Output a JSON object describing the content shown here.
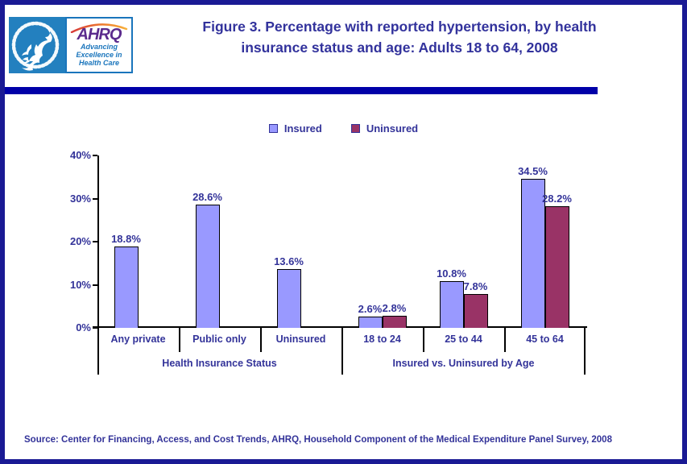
{
  "header": {
    "title_line1": "Figure 3. Percentage with reported hypertension, by health",
    "title_line2": "insurance status and age: Adults 18 to 64, 2008",
    "logo": {
      "wordmark": "AHRQ",
      "tagline_line1": "Advancing",
      "tagline_line2": "Excellence in",
      "tagline_line3": "Health Care"
    }
  },
  "colors": {
    "insured": "#9999ff",
    "uninsured": "#993366",
    "text_blue": "#333399",
    "rule_blue": "#0000a8",
    "border_navy": "#1a1a94"
  },
  "chart_data": {
    "type": "bar",
    "title": "Figure 3. Percentage with reported hypertension, by health insurance status and age: Adults 18 to 64, 2008",
    "ylabel": "",
    "xlabel": "",
    "ylim": [
      0,
      40
    ],
    "yticks": [
      0,
      10,
      20,
      30,
      40
    ],
    "ytick_suffix": "%",
    "grid": false,
    "legend_position": "top-center",
    "categories": [
      "Any private",
      "Public only",
      "Uninsured",
      "18 to 24",
      "25 to 44",
      "45 to 64"
    ],
    "groups": [
      {
        "label": "Health Insurance Status",
        "span": [
          0,
          2
        ]
      },
      {
        "label": "Insured vs. Uninsured by Age",
        "span": [
          3,
          5
        ]
      }
    ],
    "series": [
      {
        "name": "Insured",
        "color": "#9999ff",
        "values": [
          18.8,
          28.6,
          13.6,
          2.6,
          10.8,
          34.5
        ]
      },
      {
        "name": "Uninsured",
        "color": "#993366",
        "values": [
          null,
          null,
          null,
          2.8,
          7.8,
          28.2
        ]
      }
    ],
    "value_label_format": "{value}%"
  },
  "source": "Source: Center for Financing, Access, and Cost Trends, AHRQ, Household Component of the Medical Expenditure Panel Survey, 2008"
}
